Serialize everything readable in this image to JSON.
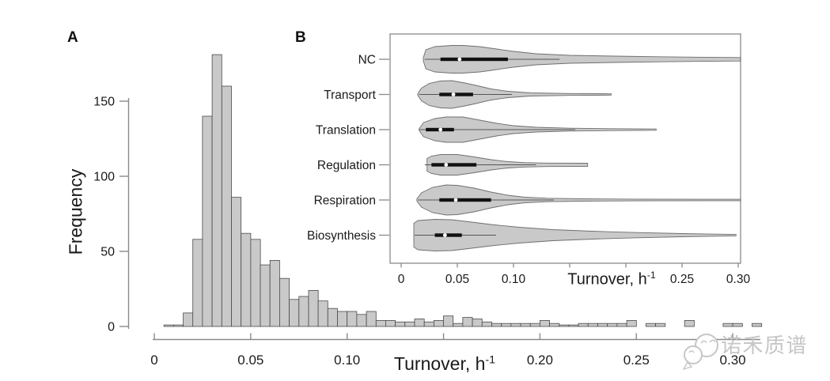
{
  "figure": {
    "panel_a_label": "A",
    "panel_b_label": "B",
    "turnover_prefix": "Turnover, h",
    "turnover_sup": "-1",
    "watermark_text": "诺禾质谱"
  },
  "colors": {
    "bar_fill": "#c9c9c9",
    "bar_stroke": "#4a4a4a",
    "violin_fill": "#c9c9c9",
    "violin_stroke": "#6e6e6e",
    "box_color": "#111111",
    "whisker_color": "#555555",
    "median_color": "#ffffff",
    "axis_color": "#8a8a8a",
    "text_color": "#1a1a1a",
    "watermark_color": "#c6c6c6"
  },
  "chart_data": [
    {
      "type": "bar",
      "panel": "A",
      "title": "",
      "xlabel": "Turnover, h^-1",
      "ylabel": "Frequency",
      "xlim": [
        0,
        0.315
      ],
      "ylim": [
        0,
        190
      ],
      "grid": false,
      "bin_start": 0.005,
      "bin_width": 0.005,
      "counts": [
        1,
        1,
        9,
        58,
        140,
        181,
        160,
        86,
        62,
        58,
        41,
        44,
        32,
        18,
        20,
        24,
        17,
        12,
        10,
        10,
        8,
        10,
        4,
        4,
        3,
        3,
        5,
        3,
        4,
        7,
        2,
        6,
        5,
        3,
        2,
        2,
        2,
        2,
        2,
        4,
        2,
        1,
        1,
        2,
        2,
        2,
        2,
        2,
        4,
        0,
        2,
        2,
        0,
        0,
        4,
        0,
        0,
        0,
        2,
        2,
        0,
        2
      ],
      "x_ticks": [
        {
          "v": 0,
          "label": "0"
        },
        {
          "v": 0.05,
          "label": "0.05"
        },
        {
          "v": 0.1,
          "label": "0.10"
        },
        {
          "v": 0.15,
          "label": ""
        },
        {
          "v": 0.2,
          "label": "0.20"
        },
        {
          "v": 0.25,
          "label": "0.25"
        },
        {
          "v": 0.3,
          "label": "0.30"
        }
      ],
      "y_ticks": [
        {
          "v": 0,
          "label": "0"
        },
        {
          "v": 50,
          "label": "50"
        },
        {
          "v": 100,
          "label": "100"
        },
        {
          "v": 150,
          "label": "150"
        }
      ]
    },
    {
      "type": "violin",
      "panel": "B",
      "title": "",
      "xlabel": "Turnover, h^-1",
      "xlim": [
        0,
        0.31
      ],
      "categories": [
        "NC",
        "Transport",
        "Translation",
        "Regulation",
        "Respiration",
        "Biosynthesis"
      ],
      "x_ticks": [
        {
          "v": 0,
          "label": "0"
        },
        {
          "v": 0.05,
          "label": "0.05"
        },
        {
          "v": 0.1,
          "label": "0.10"
        },
        {
          "v": 0.15,
          "label": ""
        },
        {
          "v": 0.2,
          "label": ""
        },
        {
          "v": 0.25,
          "label": "0.25"
        },
        {
          "v": 0.3,
          "label": "0.30"
        }
      ],
      "violins": [
        {
          "name": "NC",
          "box": [
            0.035,
            0.095
          ],
          "median": 0.052,
          "whisker": [
            0.021,
            0.141
          ],
          "shape": [
            [
              0.0197,
              2
            ],
            [
              0.022,
              12
            ],
            [
              0.03,
              16
            ],
            [
              0.045,
              17.5
            ],
            [
              0.055,
              17.5
            ],
            [
              0.07,
              16
            ],
            [
              0.085,
              13
            ],
            [
              0.1,
              10
            ],
            [
              0.12,
              7
            ],
            [
              0.15,
              5
            ],
            [
              0.19,
              4
            ],
            [
              0.23,
              3.2
            ],
            [
              0.27,
              2.6
            ],
            [
              0.302,
              2.2
            ]
          ]
        },
        {
          "name": "Transport",
          "box": [
            0.034,
            0.064
          ],
          "median": 0.0465,
          "whisker": [
            0.016,
            0.0985
          ],
          "shape": [
            [
              0.0148,
              1
            ],
            [
              0.018,
              8
            ],
            [
              0.025,
              14
            ],
            [
              0.035,
              17
            ],
            [
              0.045,
              17.5
            ],
            [
              0.055,
              15
            ],
            [
              0.065,
              12
            ],
            [
              0.08,
              7
            ],
            [
              0.095,
              4
            ],
            [
              0.115,
              2
            ],
            [
              0.15,
              1.2
            ],
            [
              0.187,
              0.8
            ]
          ]
        },
        {
          "name": "Translation",
          "box": [
            0.022,
            0.047
          ],
          "median": 0.035,
          "whisker": [
            0.016,
            0.155
          ],
          "shape": [
            [
              0.016,
              1
            ],
            [
              0.02,
              9
            ],
            [
              0.03,
              14
            ],
            [
              0.04,
              16
            ],
            [
              0.055,
              16
            ],
            [
              0.07,
              12
            ],
            [
              0.085,
              8
            ],
            [
              0.1,
              5
            ],
            [
              0.12,
              3
            ],
            [
              0.15,
              1.8
            ],
            [
              0.19,
              1.2
            ],
            [
              0.227,
              0.8
            ]
          ]
        },
        {
          "name": "Regulation",
          "box": [
            0.027,
            0.067
          ],
          "median": 0.04,
          "whisker": [
            0.021,
            0.12
          ],
          "shape": [
            [
              0.023,
              8
            ],
            [
              0.027,
              11
            ],
            [
              0.035,
              13
            ],
            [
              0.05,
              13
            ],
            [
              0.065,
              10
            ],
            [
              0.08,
              6.5
            ],
            [
              0.095,
              4
            ],
            [
              0.11,
              2.8
            ],
            [
              0.13,
              2.2
            ],
            [
              0.166,
              2
            ]
          ]
        },
        {
          "name": "Respiration",
          "box": [
            0.034,
            0.08
          ],
          "median": 0.0486,
          "whisker": [
            0.015,
            0.136
          ],
          "shape": [
            [
              0.014,
              1.5
            ],
            [
              0.018,
              9
            ],
            [
              0.028,
              16
            ],
            [
              0.04,
              19
            ],
            [
              0.05,
              18.5
            ],
            [
              0.065,
              15
            ],
            [
              0.08,
              10
            ],
            [
              0.095,
              6
            ],
            [
              0.11,
              3.5
            ],
            [
              0.13,
              2.2
            ],
            [
              0.16,
              1.5
            ],
            [
              0.21,
              1.1
            ],
            [
              0.302,
              0.9
            ]
          ]
        },
        {
          "name": "Biosynthesis",
          "box": [
            0.03,
            0.054
          ],
          "median": 0.039,
          "whisker": [
            0.012,
            0.0845
          ],
          "shape": [
            [
              0.0113,
              15
            ],
            [
              0.015,
              18.5
            ],
            [
              0.03,
              20
            ],
            [
              0.045,
              19.5
            ],
            [
              0.06,
              17
            ],
            [
              0.08,
              13.5
            ],
            [
              0.105,
              10
            ],
            [
              0.135,
              7
            ],
            [
              0.17,
              5
            ],
            [
              0.21,
              3.3
            ],
            [
              0.25,
              2
            ],
            [
              0.298,
              0.9
            ]
          ]
        }
      ]
    }
  ]
}
